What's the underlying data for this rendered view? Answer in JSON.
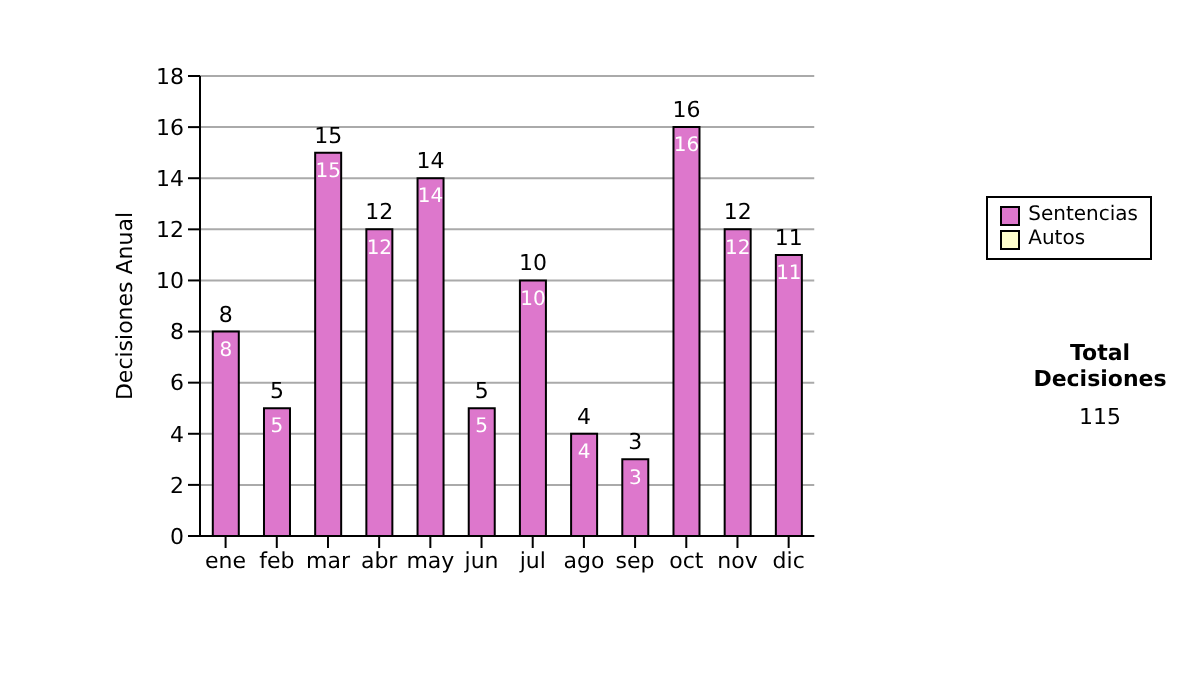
{
  "chart_data": {
    "type": "bar",
    "ylabel": "Decisiones Anual",
    "categories": [
      "ene",
      "feb",
      "mar",
      "abr",
      "may",
      "jun",
      "jul",
      "ago",
      "sep",
      "oct",
      "nov",
      "dic"
    ],
    "series": [
      {
        "name": "Sentencias",
        "color": "#dd77cc",
        "values": [
          8,
          5,
          15,
          12,
          14,
          5,
          10,
          4,
          3,
          16,
          12,
          11
        ]
      },
      {
        "name": "Autos",
        "color": "#ffffcc",
        "values": [
          null,
          null,
          null,
          null,
          null,
          null,
          null,
          null,
          null,
          null,
          null,
          null
        ]
      }
    ],
    "stacked": true,
    "data_labels": true,
    "totals": [
      "8",
      "5",
      "15",
      "12",
      "14",
      "5",
      "10",
      "4",
      "3",
      "16",
      "12",
      "11"
    ],
    "ylim": [
      0,
      18
    ],
    "yticks": [
      0,
      2,
      4,
      6,
      8,
      10,
      12,
      14,
      16,
      18
    ],
    "grid": "y",
    "legend": "right",
    "annotations": [
      "Total Decisiones",
      "115"
    ]
  }
}
